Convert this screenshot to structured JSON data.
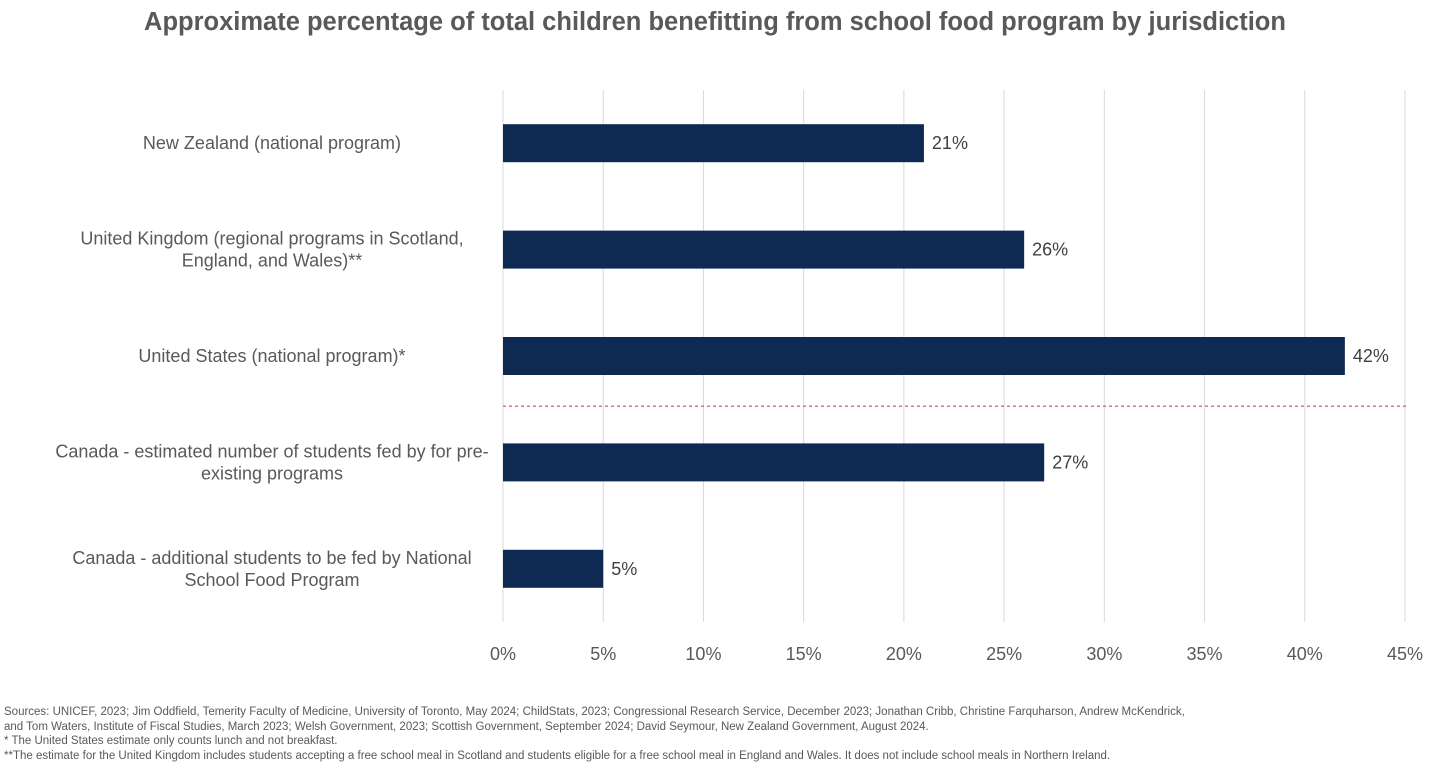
{
  "chart_data": {
    "type": "bar",
    "orientation": "horizontal",
    "title": "Approximate percentage of total children benefitting from school food program by jurisdiction",
    "categories": [
      [
        "New Zealand (national program)"
      ],
      [
        "United Kingdom (regional programs in Scotland,",
        "England, and Wales)**"
      ],
      [
        "United States (national program)*"
      ],
      [
        "Canada - estimated number of students fed by for pre-",
        "existing programs"
      ],
      [
        "Canada - additional students to be fed by National",
        "School Food Program"
      ]
    ],
    "values": [
      21,
      26,
      42,
      27,
      5
    ],
    "data_labels": [
      "21%",
      "26%",
      "42%",
      "27%",
      "5%"
    ],
    "xlim": [
      0,
      45
    ],
    "xticks": [
      0,
      5,
      10,
      15,
      20,
      25,
      30,
      35,
      40,
      45
    ],
    "xtick_labels": [
      "0%",
      "5%",
      "10%",
      "15%",
      "20%",
      "25%",
      "30%",
      "35%",
      "40%",
      "45%"
    ],
    "grid": true,
    "bar_color": "#0e2a52",
    "grid_color": "#d9d9d9",
    "separator": {
      "style": "dashed",
      "color": "#e06666",
      "between_categories": [
        2,
        3
      ]
    }
  },
  "footnotes": {
    "sources_line1": "Sources: UNICEF, 2023; Jim Oddfield, Temerity Faculty of Medicine, University of Toronto, May 2024; ChildStats, 2023; Congressional Research Service, December 2023; Jonathan Cribb, Christine Farquharson, Andrew McKendrick,",
    "sources_line2": "and Tom Waters, Institute of Fiscal Studies, March 2023; Welsh Government, 2023; Scottish Government, September 2024; David Seymour, New Zealand Government, August 2024.",
    "note_us": "* The United States estimate only counts lunch and not breakfast.",
    "note_uk": "**The estimate for the United Kingdom includes students accepting a free school meal in Scotland and students eligible for a free school meal in England and Wales. It does not include school meals in Northern Ireland."
  }
}
